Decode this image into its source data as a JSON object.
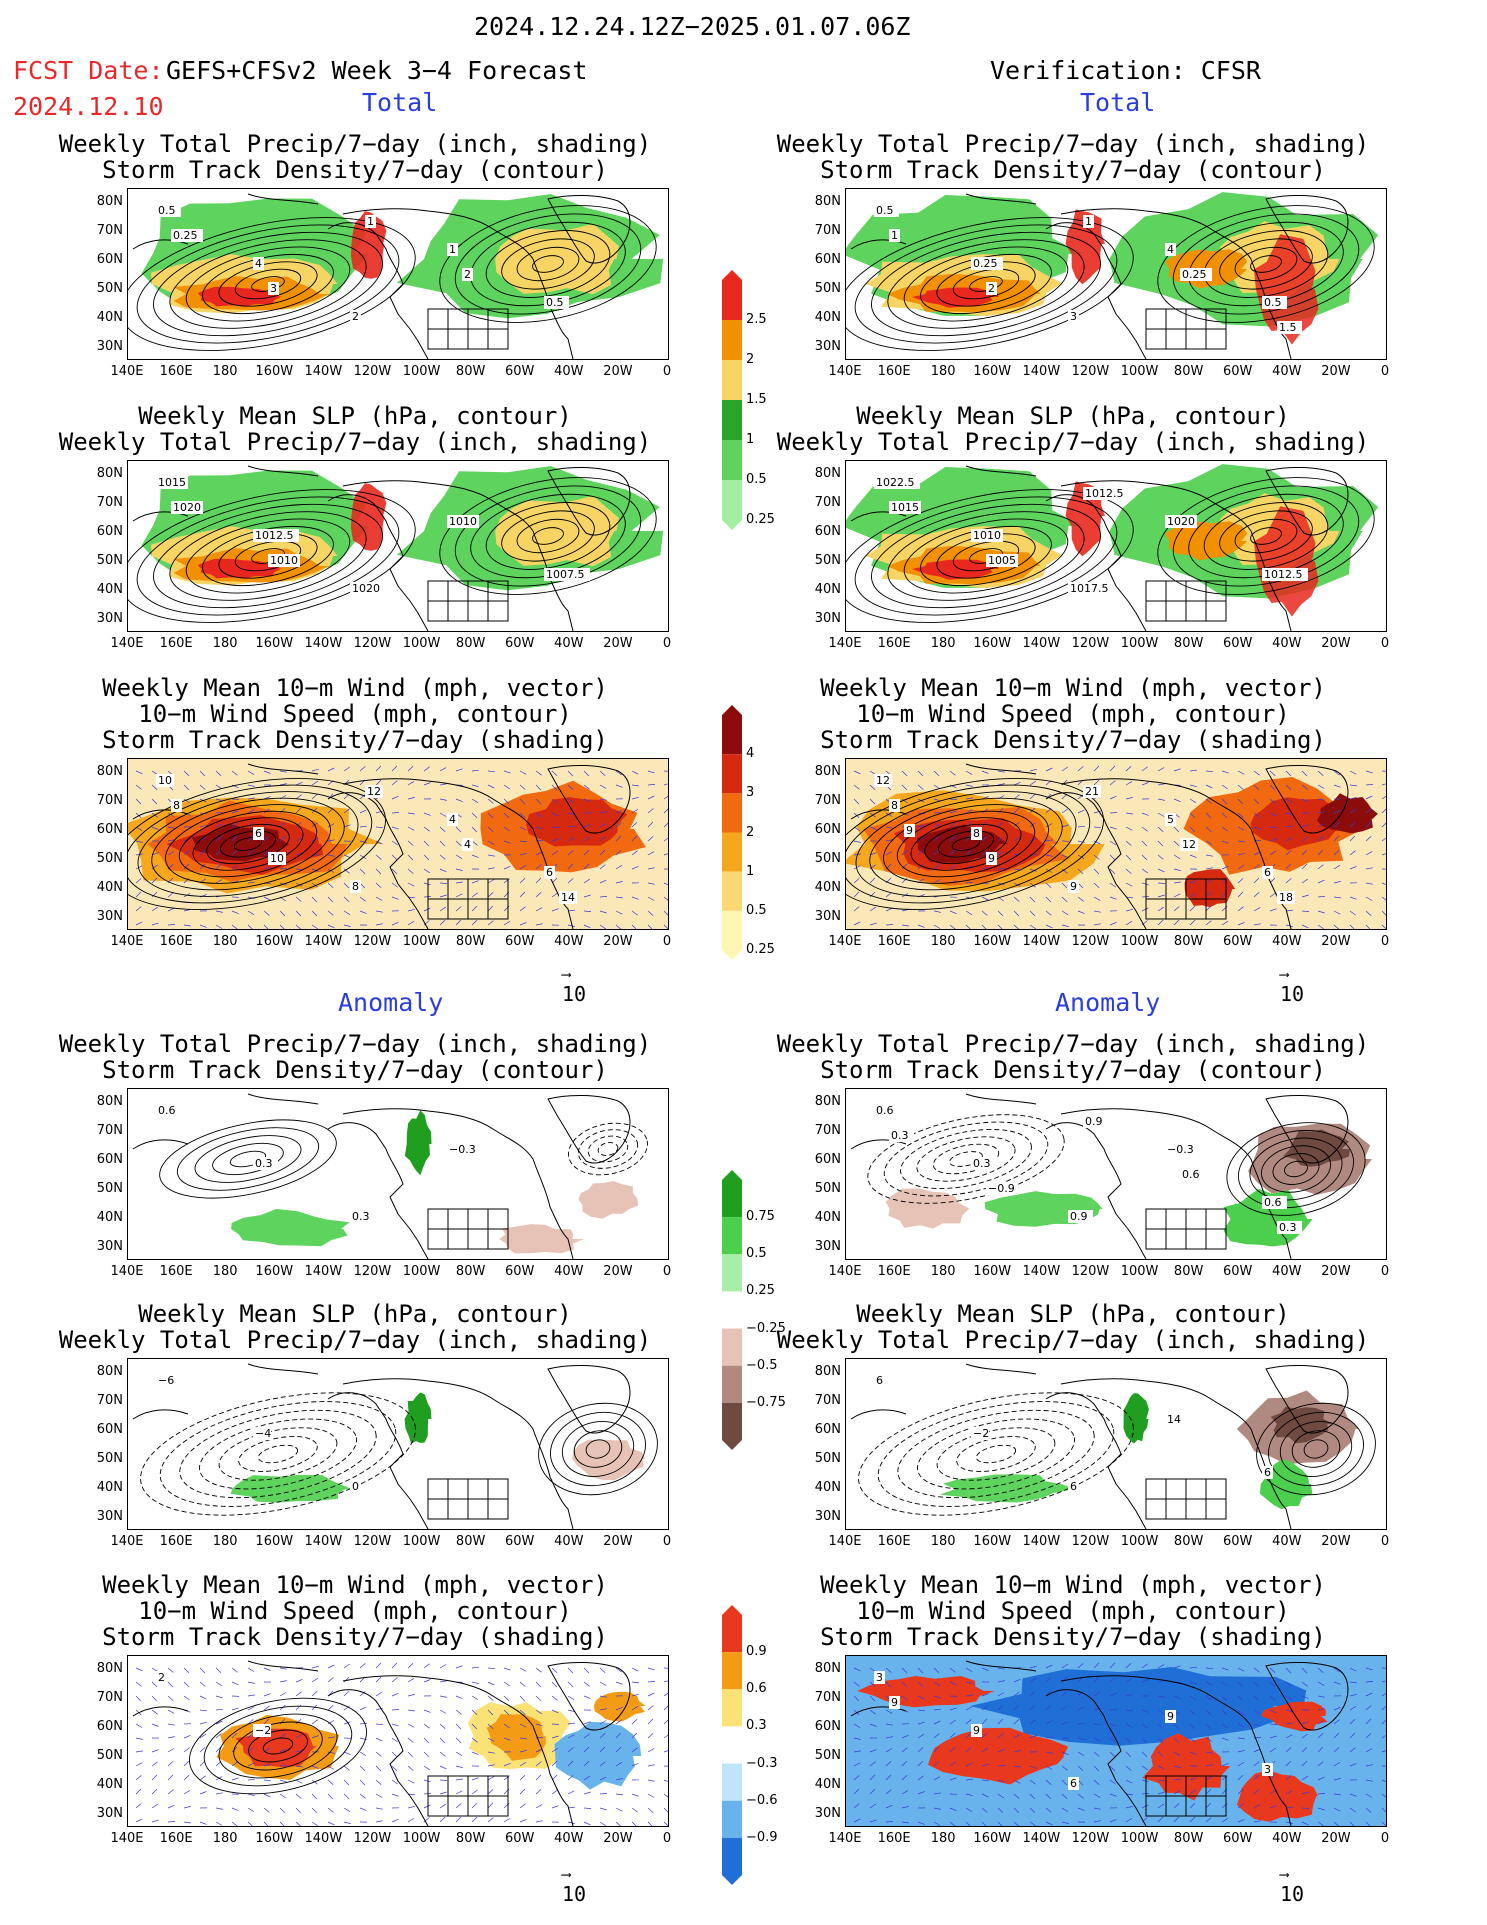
{
  "header": {
    "period": "2024.12.24.12Z−2025.01.07.06Z",
    "fcst_label": "FCST Date:",
    "fcst_model": "GEFS+CFSv2 Week 3−4 Forecast",
    "fcst_date": "2024.12.10",
    "verification": "Verification: CFSR"
  },
  "sections": {
    "total": "Total",
    "anomaly": "Anomaly"
  },
  "titles": {
    "precip_track": [
      "Weekly Total Precip/7−day (inch, shading)",
      "Storm Track Density/7−day (contour)"
    ],
    "slp_precip": [
      "Weekly Mean SLP (hPa, contour)",
      "Weekly Total Precip/7−day (inch, shading)"
    ],
    "wind_track": [
      "Weekly Mean 10−m Wind (mph, vector)",
      "10−m Wind Speed (mph, contour)",
      "Storm Track Density/7−day (shading)"
    ]
  },
  "axes": {
    "lat_ticks": [
      "80N",
      "70N",
      "60N",
      "50N",
      "40N",
      "30N"
    ],
    "lon_ticks": [
      "140E",
      "160E",
      "180",
      "160W",
      "140W",
      "120W",
      "100W",
      "80W",
      "60W",
      "40W",
      "20W",
      "0"
    ]
  },
  "vector_ref": "10",
  "colorbars": {
    "precip_total": {
      "labels": [
        "2.5",
        "2",
        "1.5",
        "1",
        "0.5",
        "0.25"
      ],
      "colors": [
        "#e8281e",
        "#f29100",
        "#f7d565",
        "#2aa52a",
        "#5ed35e",
        "#a4eea4"
      ]
    },
    "track_total": {
      "labels": [
        "4",
        "3",
        "2",
        "1",
        "0.5",
        "0.25"
      ],
      "colors": [
        "#8c0c0c",
        "#d62a10",
        "#f26a10",
        "#f5a81e",
        "#fcd873",
        "#fdf5b2"
      ]
    },
    "precip_anom": {
      "labels": [
        "0.75",
        "0.5",
        "0.25",
        "−0.25",
        "−0.5",
        "−0.75"
      ],
      "colors": [
        "#1f9e1f",
        "#4ccf4c",
        "#a8eea8",
        "#ffffff",
        "#e6c3b6",
        "#b08a80",
        "#6e4a40"
      ]
    },
    "track_anom": {
      "labels": [
        "0.9",
        "0.6",
        "0.3",
        "−0.3",
        "−0.6",
        "−0.9"
      ],
      "colors": [
        "#e8381e",
        "#f49b16",
        "#fbe276",
        "#ffffff",
        "#bfe6f7",
        "#69b3ec",
        "#1f6fd6"
      ]
    }
  },
  "contour_labels": {
    "fp1": [
      "0.5",
      "4",
      "2",
      "1",
      "0.5",
      "0.25",
      "3",
      "1",
      "2"
    ],
    "fp2": [
      "1015",
      "1012.5",
      "1020",
      "1010",
      "1007.5",
      "1020",
      "1010"
    ],
    "fp3": [
      "10",
      "6",
      "8",
      "4",
      "6",
      "8",
      "10",
      "12",
      "4",
      "14"
    ],
    "fa1": [
      "0.6",
      "0.3",
      "0.3",
      "−0.3"
    ],
    "fa2": [
      "−6",
      "−4",
      "0"
    ],
    "fa3": [
      "2",
      "−2"
    ],
    "vp1": [
      "0.5",
      "0.25",
      "3",
      "4",
      "0.5",
      "1",
      "2",
      "1",
      "0.25",
      "1.5"
    ],
    "vp2": [
      "1022.5",
      "1010",
      "1017.5",
      "1020",
      "1012.5",
      "1015",
      "1005",
      "1012.5"
    ],
    "vp3": [
      "12",
      "8",
      "9",
      "5",
      "6",
      "8",
      "9",
      "21",
      "12",
      "18",
      "9"
    ],
    "va1": [
      "0.6",
      "0.3",
      "0.9",
      "−0.3",
      "0.6",
      "0.3",
      "−0.9",
      "0.9",
      "0.6",
      "0.3"
    ],
    "va2": [
      "6",
      "−2",
      "6",
      "14",
      "6"
    ],
    "va3": [
      "3",
      "9",
      "6",
      "9",
      "3",
      "9"
    ]
  }
}
